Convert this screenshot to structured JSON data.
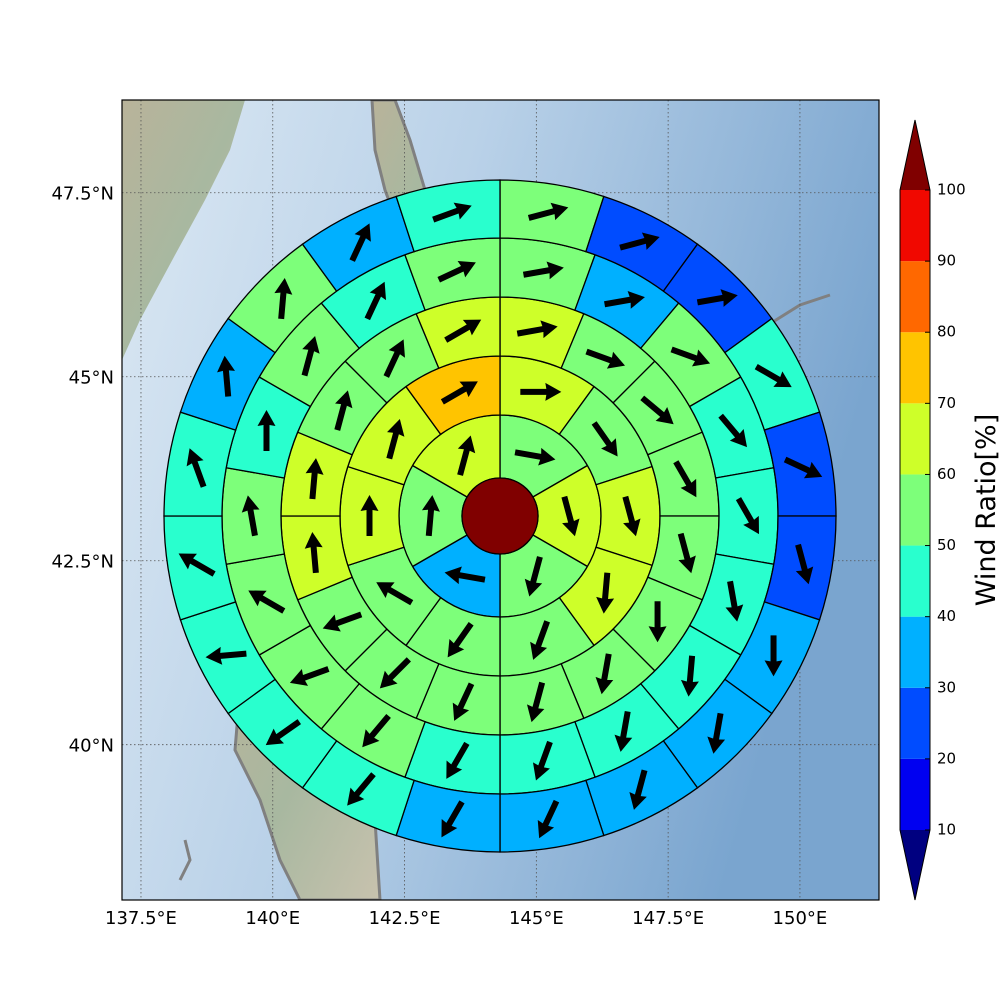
{
  "chart_data": {
    "type": "polar_wind",
    "xlim": [
      137.14,
      151.5
    ],
    "ylim": [
      37.89,
      48.76
    ],
    "xticks": [
      {
        "value": 137.5,
        "label": "137.5°E"
      },
      {
        "value": 140,
        "label": "140°E"
      },
      {
        "value": 142.5,
        "label": "142.5°E"
      },
      {
        "value": 145,
        "label": "145°E"
      },
      {
        "value": 147.5,
        "label": "147.5°E"
      },
      {
        "value": 150,
        "label": "150°E"
      }
    ],
    "yticks": [
      {
        "value": 40,
        "label": "40°N"
      },
      {
        "value": 42.5,
        "label": "42.5°N"
      },
      {
        "value": 45,
        "label": "45°N"
      },
      {
        "value": 47.5,
        "label": "47.5°N"
      }
    ],
    "grid": true,
    "center_value": 100,
    "rings": [
      {
        "values": [
          55,
          65,
          55,
          35,
          55,
          65
        ],
        "directions": [
          100,
          165,
          195,
          280,
          5,
          15
        ]
      },
      {
        "values": [
          65,
          55,
          65,
          65,
          55,
          55,
          55,
          65,
          65,
          75
        ],
        "directions": [
          90,
          145,
          165,
          185,
          200,
          215,
          300,
          0,
          15,
          60
        ]
      },
      {
        "values": [
          65,
          55,
          55,
          55,
          55,
          55,
          55,
          55,
          55,
          55,
          55,
          65,
          65,
          55,
          55,
          65
        ],
        "directions": [
          80,
          110,
          130,
          150,
          165,
          180,
          190,
          195,
          205,
          225,
          250,
          355,
          5,
          15,
          25,
          60
        ]
      },
      {
        "values": [
          55,
          35,
          55,
          45,
          45,
          45,
          45,
          45,
          45,
          45,
          55,
          55,
          55,
          55,
          45,
          55,
          45,
          55
        ],
        "directions": [
          80,
          80,
          110,
          140,
          150,
          170,
          185,
          190,
          200,
          210,
          220,
          250,
          300,
          350,
          0,
          15,
          25,
          65
        ]
      },
      {
        "values": [
          55,
          25,
          25,
          45,
          25,
          25,
          35,
          35,
          35,
          35,
          35,
          45,
          45,
          45,
          45,
          45,
          35,
          55,
          35,
          45
        ],
        "directions": [
          75,
          75,
          80,
          120,
          115,
          165,
          180,
          190,
          195,
          205,
          210,
          220,
          235,
          265,
          300,
          340,
          355,
          5,
          25,
          70
        ]
      }
    ],
    "colorbar": {
      "label": "Wind Ratio[%]",
      "ticks": [
        10,
        20,
        30,
        40,
        50,
        60,
        70,
        80,
        90,
        100
      ],
      "colors": [
        "#0000f1",
        "#004cff",
        "#00b0ff",
        "#29ffce",
        "#7dff7a",
        "#ceff29",
        "#ffc400",
        "#ff6800",
        "#f10800"
      ],
      "under_color": "#000080",
      "over_color": "#800000"
    }
  }
}
